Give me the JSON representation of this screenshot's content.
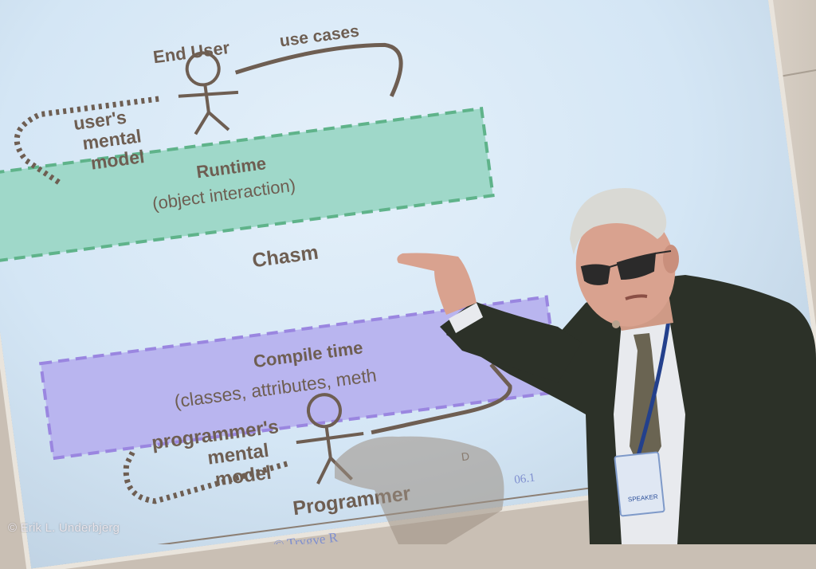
{
  "slide": {
    "end_user_label": "End User",
    "use_cases_label": "use cases",
    "users_mental_model": [
      "user's",
      "mental",
      "model"
    ],
    "runtime_title": "Runtime",
    "runtime_subtitle": "(object interaction)",
    "chasm_label": "Chasm",
    "compile_title": "Compile time",
    "compile_subtitle": "(classes, attributes, meth",
    "programmers_mental_model": [
      "programmer's",
      "mental",
      "model"
    ],
    "programmer_label": "Programmer",
    "footer_copyright": "© Trygve R",
    "footer_date": "06.1",
    "footer_extra": "D"
  },
  "photo_credit": "© Erik L. Underbjerg",
  "badge_text": "SPEAKER",
  "colors": {
    "screen": "#d4e6f5",
    "runtime_box": "#9fd8c9",
    "runtime_border": "#5fb38a",
    "compile_box": "#b9b5ef",
    "compile_border": "#9a86e0",
    "slide_text": "#6e5e52",
    "jacket": "#2c3128",
    "hair": "#d9d9d4"
  }
}
